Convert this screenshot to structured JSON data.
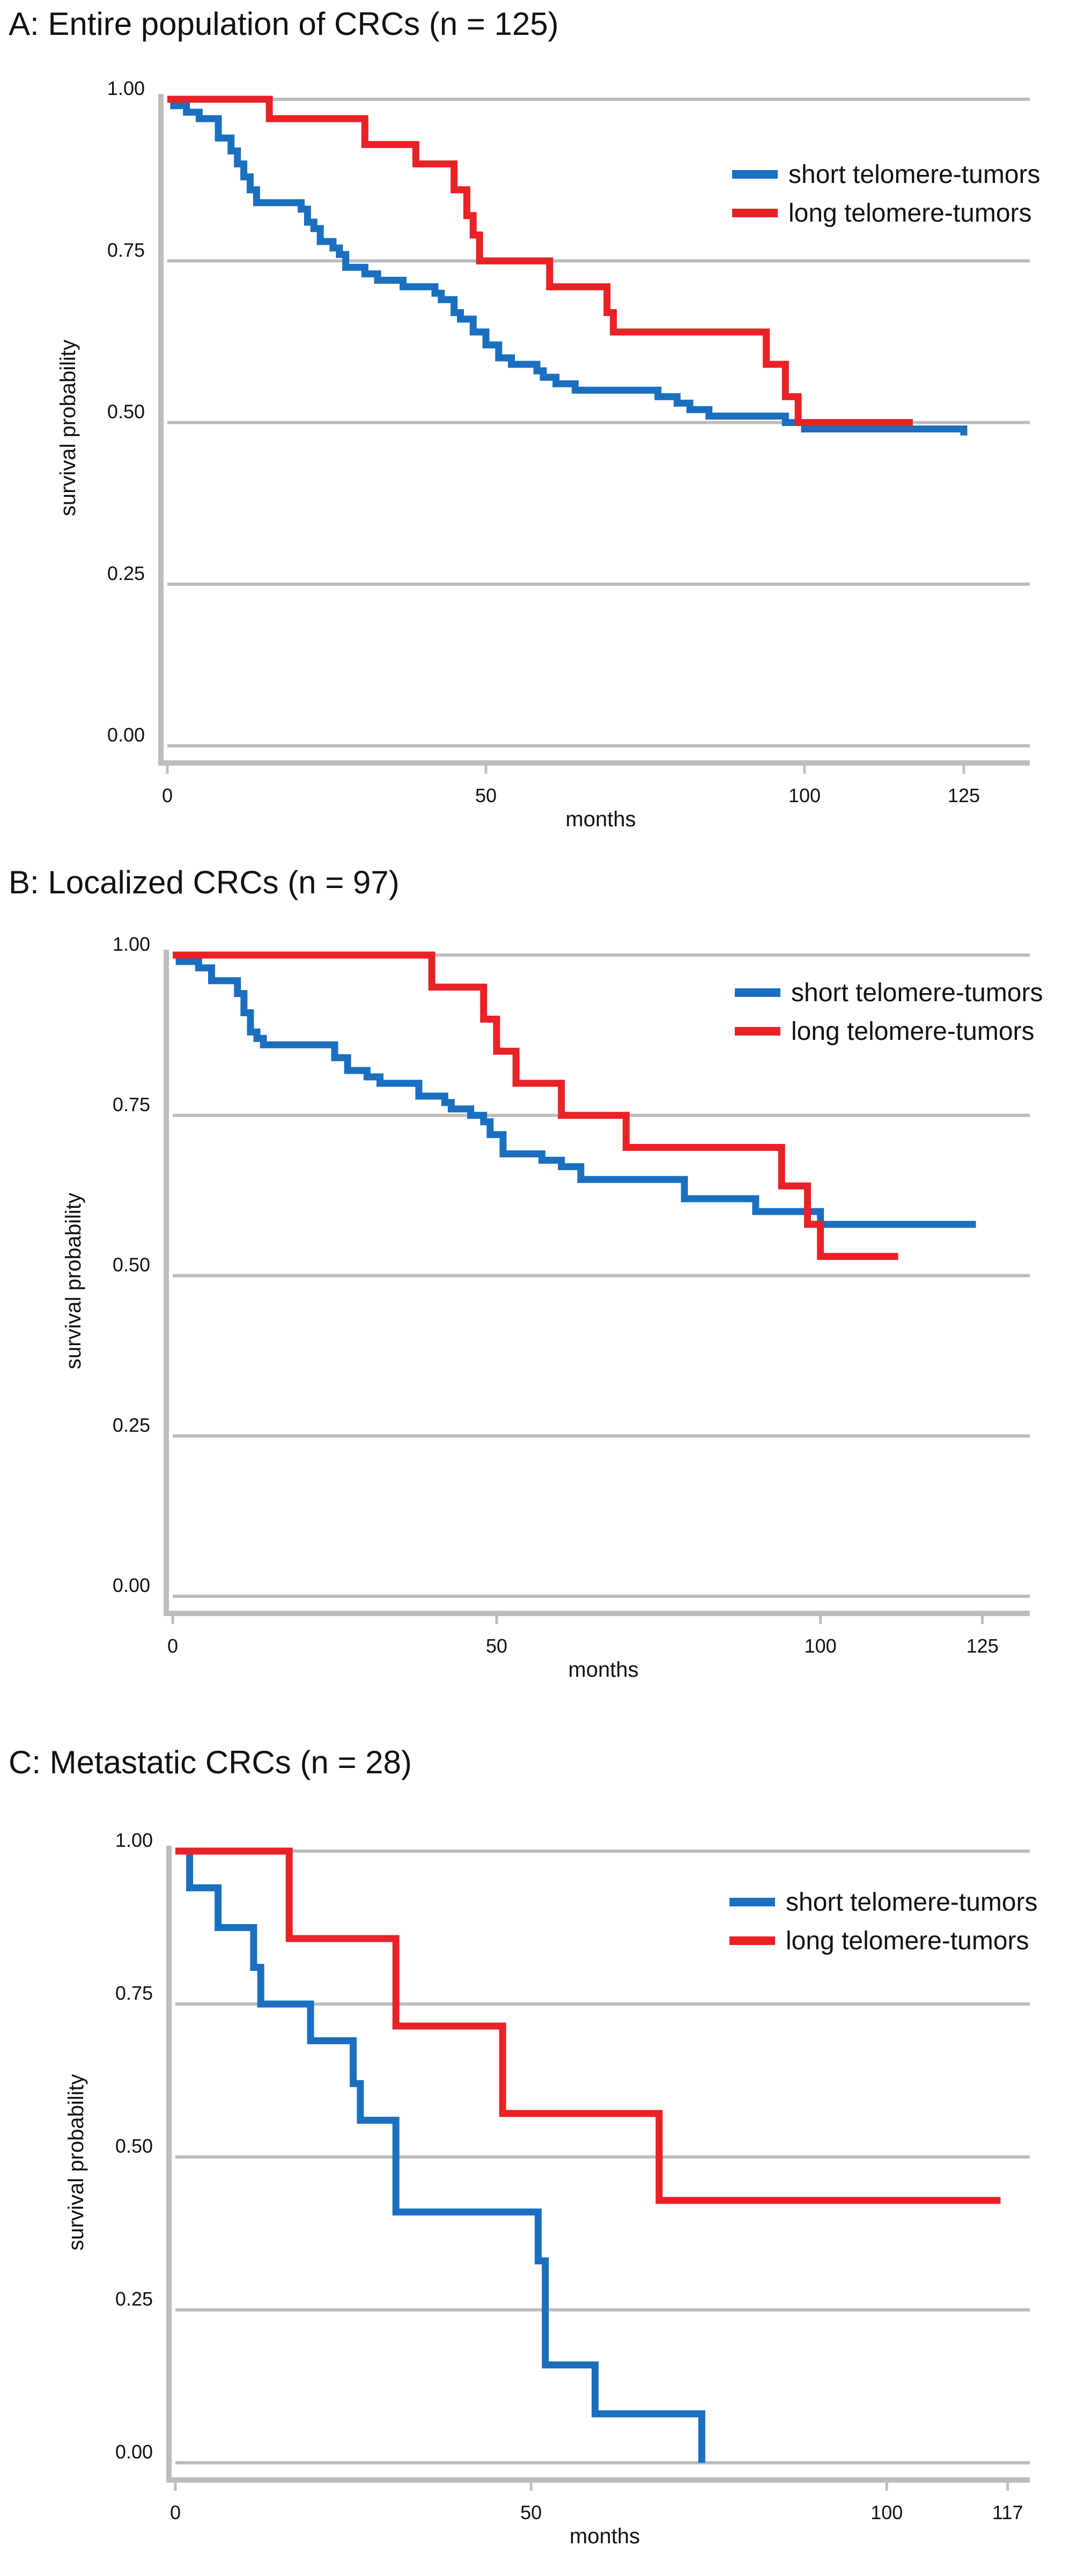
{
  "chart_data": [
    {
      "type": "line",
      "step": "post",
      "title": "A: Entire population of CRCs (n = 125)",
      "xlabel": "months",
      "ylabel": "survival probability",
      "xticks": [
        "0",
        "50",
        "100",
        "125"
      ],
      "xtick_values": [
        0,
        50,
        100,
        125
      ],
      "yticks": [
        "0.00",
        "0.25",
        "0.50",
        "0.75",
        "1.00"
      ],
      "ytick_values": [
        0,
        0.25,
        0.5,
        0.75,
        1.0
      ],
      "xlim": [
        0,
        133
      ],
      "ylim": [
        0,
        1.0
      ],
      "grid": "horizontal",
      "legend": "top-right",
      "series": [
        {
          "name": "short telomere-tumors",
          "color": "#1a6fc1",
          "x": [
            0,
            1,
            3,
            5,
            8,
            10,
            11,
            12,
            13,
            14,
            16,
            19,
            21,
            22,
            23,
            24,
            26,
            27,
            28,
            31,
            33,
            37,
            40,
            41,
            42,
            43,
            45,
            46,
            48,
            50,
            52,
            54,
            56,
            58,
            59,
            61,
            64,
            67,
            69,
            70,
            71,
            74,
            77,
            79,
            80,
            82,
            85,
            90,
            97,
            100,
            125
          ],
          "y": [
            1.0,
            0.99,
            0.98,
            0.97,
            0.94,
            0.92,
            0.9,
            0.88,
            0.86,
            0.84,
            0.84,
            0.84,
            0.83,
            0.81,
            0.8,
            0.78,
            0.77,
            0.76,
            0.74,
            0.73,
            0.72,
            0.71,
            0.71,
            0.71,
            0.7,
            0.69,
            0.67,
            0.66,
            0.64,
            0.62,
            0.6,
            0.59,
            0.59,
            0.58,
            0.57,
            0.56,
            0.55,
            0.55,
            0.55,
            0.55,
            0.55,
            0.55,
            0.54,
            0.54,
            0.53,
            0.52,
            0.51,
            0.51,
            0.5,
            0.49,
            0.48
          ]
        },
        {
          "name": "long telomere-tumors",
          "color": "#e82227",
          "x": [
            0,
            16,
            31,
            39,
            45,
            47,
            48,
            49,
            50,
            51,
            58,
            60,
            61,
            69,
            70,
            92,
            94,
            97,
            99,
            100,
            117
          ],
          "y": [
            1.0,
            0.97,
            0.93,
            0.9,
            0.86,
            0.82,
            0.79,
            0.75,
            0.75,
            0.75,
            0.75,
            0.71,
            0.71,
            0.67,
            0.64,
            0.64,
            0.59,
            0.54,
            0.5,
            0.5,
            0.5
          ]
        }
      ]
    },
    {
      "type": "line",
      "step": "post",
      "title": "B: Localized CRCs (n = 97)",
      "xlabel": "months",
      "ylabel": "survival probability",
      "xticks": [
        "0",
        "50",
        "100",
        "125"
      ],
      "xtick_values": [
        0,
        50,
        100,
        125
      ],
      "yticks": [
        "0.00",
        "0.25",
        "0.50",
        "0.75",
        "1.00"
      ],
      "ytick_values": [
        0,
        0.25,
        0.5,
        0.75,
        1.0
      ],
      "xlim": [
        0,
        130
      ],
      "ylim": [
        0,
        1.0
      ],
      "grid": "horizontal",
      "legend": "top-right",
      "series": [
        {
          "name": "short telomere-tumors",
          "color": "#1a6fc1",
          "x": [
            0,
            1,
            4,
            6,
            8,
            10,
            11,
            12,
            13,
            14,
            16,
            20,
            24,
            25,
            27,
            30,
            32,
            35,
            38,
            40,
            42,
            43,
            44,
            46,
            48,
            49,
            51,
            54,
            57,
            60,
            63,
            70,
            75,
            79,
            90,
            100,
            124
          ],
          "y": [
            1.0,
            0.99,
            0.98,
            0.96,
            0.96,
            0.94,
            0.91,
            0.88,
            0.87,
            0.86,
            0.86,
            0.86,
            0.86,
            0.84,
            0.82,
            0.81,
            0.8,
            0.8,
            0.78,
            0.78,
            0.77,
            0.76,
            0.76,
            0.75,
            0.74,
            0.72,
            0.69,
            0.69,
            0.68,
            0.67,
            0.65,
            0.65,
            0.65,
            0.62,
            0.6,
            0.58,
            0.58
          ]
        },
        {
          "name": "long telomere-tumors",
          "color": "#e82227",
          "x": [
            0,
            40,
            44,
            48,
            50,
            53,
            58,
            60,
            68,
            70,
            91,
            94,
            96,
            98,
            100,
            112
          ],
          "y": [
            1.0,
            0.95,
            0.95,
            0.9,
            0.85,
            0.8,
            0.8,
            0.75,
            0.75,
            0.7,
            0.7,
            0.64,
            0.64,
            0.58,
            0.53,
            0.53
          ]
        }
      ]
    },
    {
      "type": "line",
      "step": "post",
      "title": "C: Metastatic CRCs (n = 28)",
      "xlabel": "months",
      "ylabel": "survival probability",
      "xticks": [
        "0",
        "50",
        "100",
        "117"
      ],
      "xtick_values": [
        0,
        50,
        100,
        117
      ],
      "yticks": [
        "0.00",
        "0.25",
        "0.50",
        "0.75",
        "1.00"
      ],
      "ytick_values": [
        0,
        0.25,
        0.5,
        0.75,
        1.0
      ],
      "xlim": [
        0,
        118
      ],
      "ylim": [
        0,
        1.0
      ],
      "grid": "horizontal",
      "legend": "top-right",
      "series": [
        {
          "name": "short telomere-tumors",
          "color": "#1a6fc1",
          "x": [
            0,
            2,
            6,
            11,
            12,
            19,
            25,
            26,
            30,
            31,
            40,
            50,
            51,
            52,
            53,
            59,
            70,
            74
          ],
          "y": [
            1.0,
            0.94,
            0.875,
            0.81,
            0.75,
            0.69,
            0.62,
            0.56,
            0.56,
            0.41,
            0.41,
            0.41,
            0.33,
            0.16,
            0.16,
            0.08,
            0.08,
            0.0
          ]
        },
        {
          "name": "long telomere-tumors",
          "color": "#e82227",
          "x": [
            0,
            16,
            31,
            46,
            68,
            116
          ],
          "y": [
            1.0,
            0.857,
            0.714,
            0.571,
            0.429,
            0.429
          ]
        }
      ]
    }
  ]
}
